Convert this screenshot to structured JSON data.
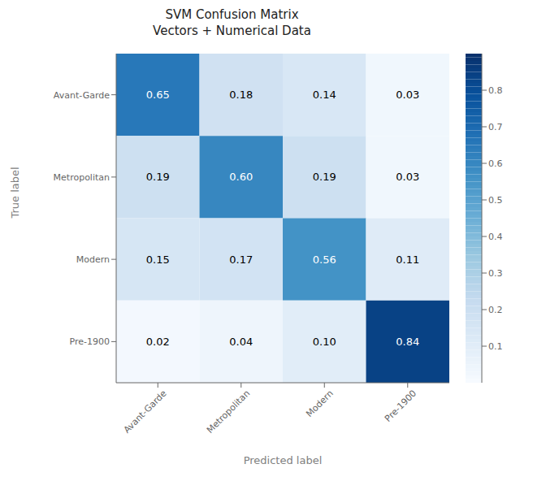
{
  "chart_data": {
    "type": "heatmap",
    "title": "SVM Confusion Matrix\nVectors + Numerical Data",
    "xlabel": "Predicted label",
    "ylabel": "True label",
    "x_categories": [
      "Avant-Garde",
      "Metropolitan",
      "Modern",
      "Pre-1900"
    ],
    "y_categories": [
      "Avant-Garde",
      "Metropolitan",
      "Modern",
      "Pre-1900"
    ],
    "values": [
      [
        0.65,
        0.18,
        0.14,
        0.03
      ],
      [
        0.19,
        0.6,
        0.19,
        0.03
      ],
      [
        0.15,
        0.17,
        0.56,
        0.11
      ],
      [
        0.02,
        0.04,
        0.1,
        0.84
      ]
    ],
    "value_labels": [
      [
        "0.65",
        "0.18",
        "0.14",
        "0.03"
      ],
      [
        "0.19",
        "0.60",
        "0.19",
        "0.03"
      ],
      [
        "0.15",
        "0.17",
        "0.56",
        "0.11"
      ],
      [
        "0.02",
        "0.04",
        "0.10",
        "0.84"
      ]
    ],
    "data_labels": true,
    "zlim": [
      0.0,
      0.9
    ],
    "zticks": [
      0.1,
      0.2,
      0.3,
      0.4,
      0.5,
      0.6,
      0.7,
      0.8
    ]
  }
}
